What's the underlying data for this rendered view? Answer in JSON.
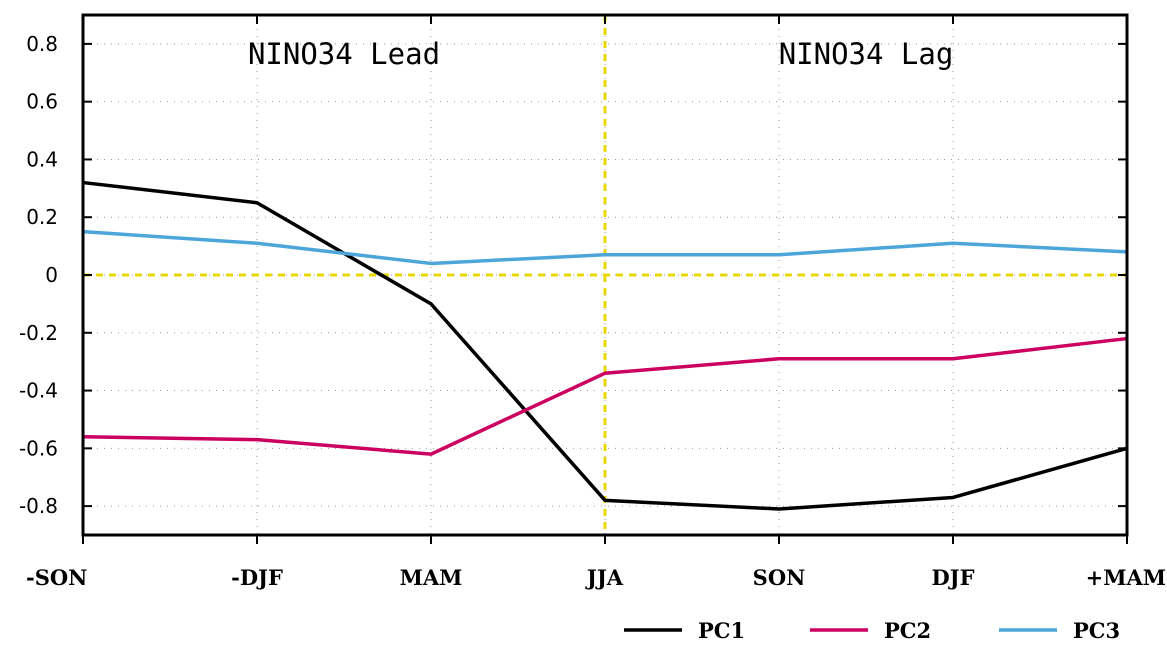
{
  "chart_data": {
    "type": "line",
    "categories": [
      "-SON",
      "-DJF",
      "MAM",
      "JJA",
      "SON",
      "DJF",
      "+MAM"
    ],
    "series": [
      {
        "name": "PC1",
        "color": "#000000",
        "values": [
          0.32,
          0.25,
          -0.1,
          -0.78,
          -0.81,
          -0.77,
          -0.6
        ]
      },
      {
        "name": "PC2",
        "color": "#cc0060",
        "values": [
          -0.56,
          -0.57,
          -0.62,
          -0.34,
          -0.29,
          -0.29,
          -0.22
        ]
      },
      {
        "name": "PC3",
        "color": "#4da6d9",
        "values": [
          0.15,
          0.11,
          0.04,
          0.07,
          0.07,
          0.11,
          0.08
        ]
      }
    ],
    "yticks": [
      -0.8,
      -0.6,
      -0.4,
      -0.2,
      0,
      0.2,
      0.4,
      0.6,
      0.8
    ],
    "ytick_labels": [
      "-0.8",
      "-0.6",
      "-0.4",
      "-0.2",
      "0",
      "0.2",
      "0.4",
      "0.6",
      "0.8"
    ],
    "ylim": [
      -0.9,
      0.9
    ],
    "annotations": [
      "NINO34 Lead",
      "NINO34 Lag"
    ],
    "reference_lines": {
      "y": 0,
      "x_category": "JJA",
      "color": "#e8d800"
    },
    "grid": "dotted",
    "legend_position": "bottom-right",
    "xlabel": "",
    "ylabel": "",
    "title": ""
  }
}
